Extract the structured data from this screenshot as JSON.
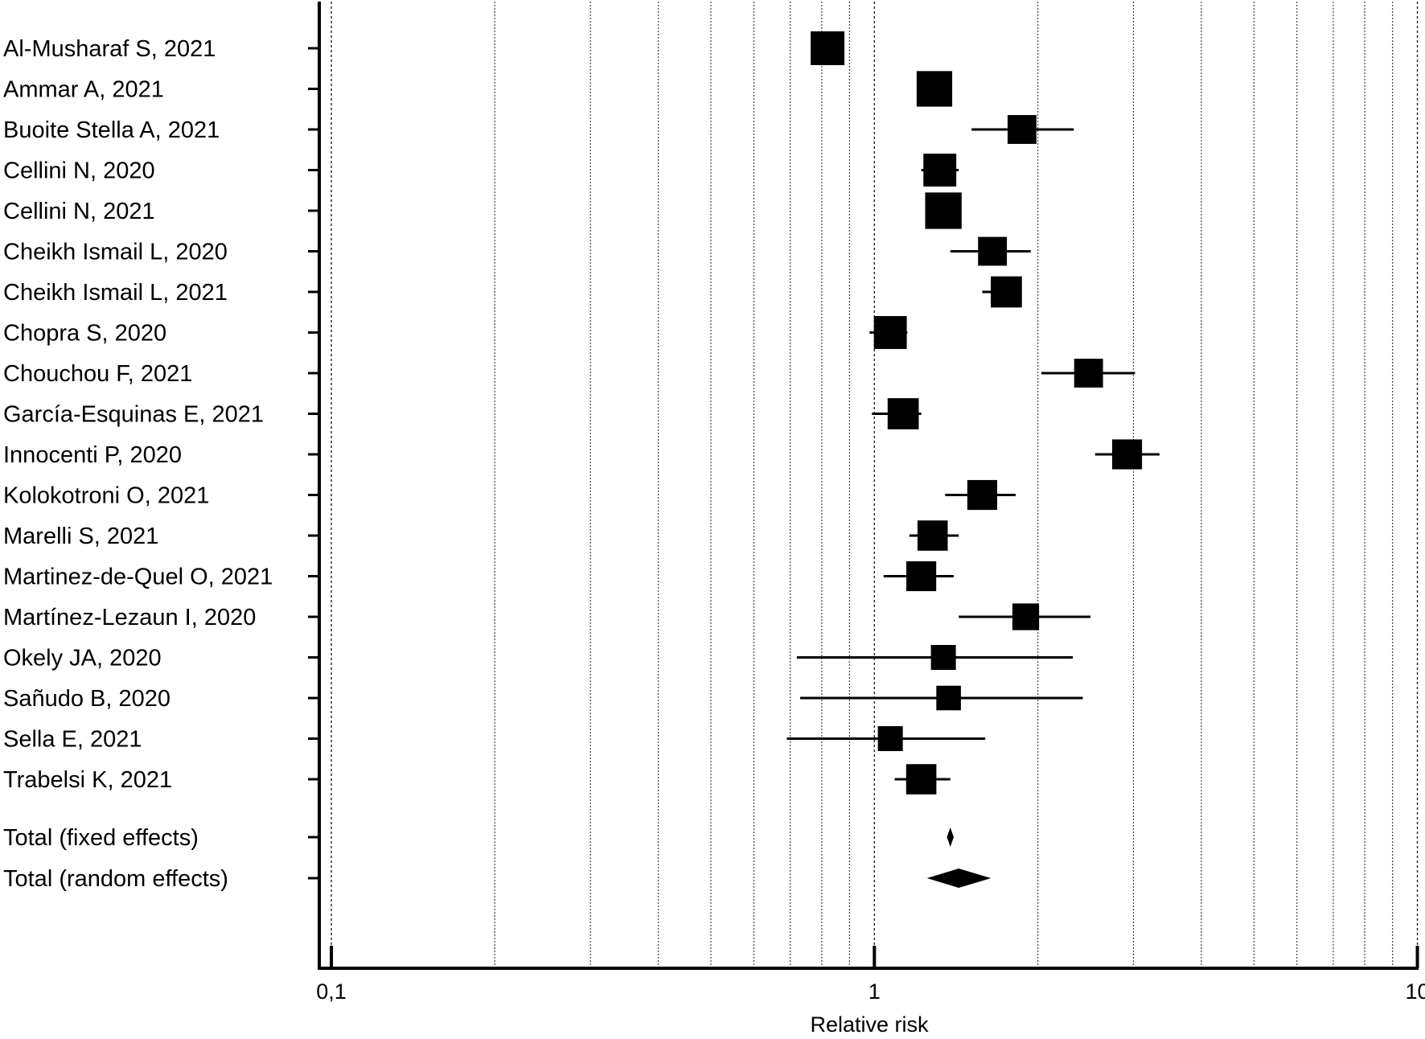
{
  "chart_data": {
    "type": "forest",
    "xlabel": "Relative risk",
    "x_scale": "log",
    "xlim": [
      0.095,
      10.05
    ],
    "major_ticks": [
      {
        "value": 0.1,
        "label": "0,1"
      },
      {
        "value": 1,
        "label": "1"
      },
      {
        "value": 10,
        "label": "10"
      }
    ],
    "minor_grid": [
      0.2,
      0.3,
      0.4,
      0.5,
      0.6,
      0.7,
      0.8,
      0.9,
      2,
      3,
      4,
      5,
      6,
      7,
      8,
      9
    ],
    "reference_line": 1,
    "studies": [
      {
        "label": "Al-Musharaf S, 2021",
        "rr": 0.82,
        "lower": 0.78,
        "upper": 0.87,
        "weight": 1.0
      },
      {
        "label": "Ammar A, 2021",
        "rr": 1.29,
        "lower": 1.24,
        "upper": 1.33,
        "weight": 1.1
      },
      {
        "label": "Buoite Stella A, 2021",
        "rr": 1.87,
        "lower": 1.51,
        "upper": 2.33,
        "weight": 0.72
      },
      {
        "label": "Cellini N, 2020",
        "rr": 1.32,
        "lower": 1.22,
        "upper": 1.43,
        "weight": 0.95
      },
      {
        "label": "Cellini N, 2021",
        "rr": 1.34,
        "lower": 1.31,
        "upper": 1.37,
        "weight": 1.15
      },
      {
        "label": "Cheikh Ismail L, 2020",
        "rr": 1.65,
        "lower": 1.38,
        "upper": 1.94,
        "weight": 0.72
      },
      {
        "label": "Cheikh Ismail L, 2021",
        "rr": 1.75,
        "lower": 1.58,
        "upper": 1.85,
        "weight": 0.85
      },
      {
        "label": "Chopra S, 2020",
        "rr": 1.07,
        "lower": 0.98,
        "upper": 1.15,
        "weight": 0.95
      },
      {
        "label": "Chouchou F, 2021",
        "rr": 2.48,
        "lower": 2.03,
        "upper": 3.02,
        "weight": 0.72
      },
      {
        "label": "García-Esquinas E, 2021",
        "rr": 1.13,
        "lower": 0.99,
        "upper": 1.22,
        "weight": 0.85
      },
      {
        "label": "Innocenti P, 2020",
        "rr": 2.92,
        "lower": 2.55,
        "upper": 3.35,
        "weight": 0.78
      },
      {
        "label": "Kolokotroni O, 2021",
        "rr": 1.58,
        "lower": 1.35,
        "upper": 1.82,
        "weight": 0.78
      },
      {
        "label": "Marelli S, 2021",
        "rr": 1.28,
        "lower": 1.16,
        "upper": 1.43,
        "weight": 0.8
      },
      {
        "label": "Martinez-de-Quel O, 2021",
        "rr": 1.22,
        "lower": 1.04,
        "upper": 1.4,
        "weight": 0.78
      },
      {
        "label": "Martínez-Lezaun I, 2020",
        "rr": 1.9,
        "lower": 1.43,
        "upper": 2.5,
        "weight": 0.6
      },
      {
        "label": "Okely JA, 2020",
        "rr": 1.34,
        "lower": 0.72,
        "upper": 2.32,
        "weight": 0.5
      },
      {
        "label": "Sañudo B, 2020",
        "rr": 1.37,
        "lower": 0.73,
        "upper": 2.42,
        "weight": 0.48
      },
      {
        "label": "Sella E, 2021",
        "rr": 1.07,
        "lower": 0.69,
        "upper": 1.6,
        "weight": 0.5
      },
      {
        "label": "Trabelsi K, 2021",
        "rr": 1.22,
        "lower": 1.09,
        "upper": 1.38,
        "weight": 0.8
      }
    ],
    "totals": [
      {
        "label": "Total (fixed effects)",
        "rr": 1.38,
        "lower": 1.36,
        "upper": 1.4
      },
      {
        "label": "Total (random effects)",
        "rr": 1.43,
        "lower": 1.25,
        "upper": 1.64
      }
    ]
  }
}
